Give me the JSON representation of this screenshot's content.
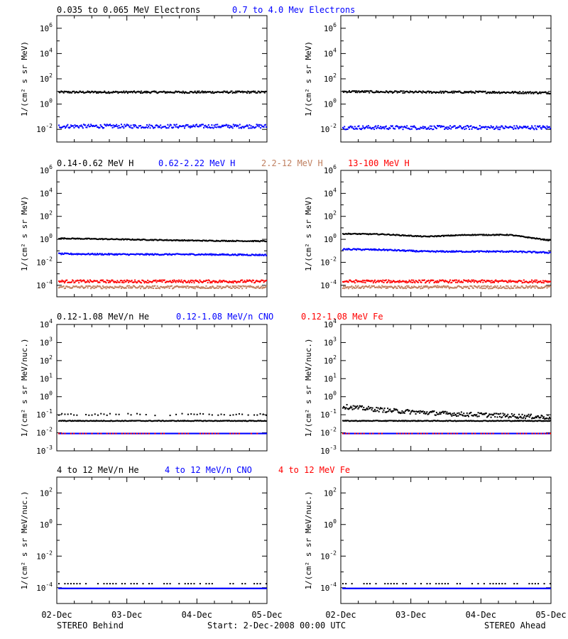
{
  "figure": {
    "footer": {
      "left": "STEREO Behind",
      "center": "Start:  2-Dec-2008 00:00 UTC",
      "right": "STEREO Ahead"
    },
    "x_tick_labels": [
      "02-Dec",
      "03-Dec",
      "04-Dec",
      "05-Dec"
    ]
  },
  "colors": {
    "black": "#000000",
    "blue": "#0000ff",
    "tan": "#c08060",
    "red": "#ff0000"
  },
  "rows": [
    {
      "legend": [
        {
          "text": "0.035 to 0.065 MeV Electrons",
          "color": "#000000"
        },
        {
          "text": "0.7 to 4.0 Mev Electrons",
          "color": "#0000ff"
        }
      ],
      "ylabel": "1/(cm² s sr MeV)",
      "yexp_range": [
        -3,
        7
      ],
      "yticks": [
        -2,
        0,
        2,
        4,
        6
      ],
      "tick_label_skip_top": false
    },
    {
      "legend": [
        {
          "text": "0.14-0.62 MeV H",
          "color": "#000000"
        },
        {
          "text": "0.62-2.22 MeV H",
          "color": "#0000ff"
        },
        {
          "text": "2.2-12 MeV H",
          "color": "#c08060"
        },
        {
          "text": "13-100 MeV H",
          "color": "#ff0000"
        }
      ],
      "ylabel": "1/(cm² s sr MeV)",
      "yexp_range": [
        -5,
        6
      ],
      "yticks": [
        -4,
        -2,
        0,
        2,
        4,
        6
      ]
    },
    {
      "legend": [
        {
          "text": "0.12-1.08 MeV/n He",
          "color": "#000000"
        },
        {
          "text": "0.12-1.08 MeV/n CNO",
          "color": "#0000ff"
        },
        {
          "text": "0.12-1.08 MeV Fe",
          "color": "#ff0000"
        }
      ],
      "ylabel": "1/(cm² s sr MeV/nuc.)",
      "yexp_range": [
        -3,
        4
      ],
      "yticks": [
        -3,
        -2,
        -1,
        0,
        1,
        2,
        3,
        4
      ]
    },
    {
      "legend": [
        {
          "text": "4 to 12 MeV/n He",
          "color": "#000000"
        },
        {
          "text": "4 to 12 MeV/n CNO",
          "color": "#0000ff"
        },
        {
          "text": "4 to 12 MeV Fe",
          "color": "#ff0000"
        }
      ],
      "ylabel": "1/(cm² s sr MeV/nuc.)",
      "yexp_range": [
        -5,
        3
      ],
      "yticks": [
        -4,
        -2,
        0,
        2
      ]
    }
  ],
  "chart_data": [
    {
      "type": "scatter",
      "row": 0,
      "spacecraft": "STEREO Behind",
      "yscale": "log",
      "xlim_days": [
        0,
        3
      ],
      "series": [
        {
          "name": "0.035 to 0.065 MeV Electrons",
          "color": "#000000",
          "level_log10": [
            1.0,
            1.0,
            1.0,
            1.0
          ],
          "scatter": 0.08
        },
        {
          "name": "0.7 to 4.0 Mev Electrons",
          "color": "#0000ff",
          "level_log10": [
            -1.7,
            -1.7,
            -1.7,
            -1.7
          ],
          "scatter": 0.15
        }
      ]
    },
    {
      "type": "scatter",
      "row": 0,
      "spacecraft": "STEREO Ahead",
      "yscale": "log",
      "xlim_days": [
        0,
        3
      ],
      "series": [
        {
          "name": "0.035 to 0.065 MeV Electrons",
          "color": "#000000",
          "level_log10": [
            1.05,
            1.0,
            1.0,
            0.95
          ],
          "scatter": 0.08
        },
        {
          "name": "0.7 to 4.0 Mev Electrons",
          "color": "#0000ff",
          "level_log10": [
            -1.8,
            -1.8,
            -1.8,
            -1.8
          ],
          "scatter": 0.15
        }
      ]
    },
    {
      "type": "scatter",
      "row": 1,
      "spacecraft": "STEREO Behind",
      "yscale": "log",
      "xlim_days": [
        0,
        3
      ],
      "series": [
        {
          "name": "0.14-0.62 MeV H",
          "color": "#000000",
          "level_log10": [
            0.15,
            0.05,
            -0.05,
            -0.1
          ],
          "scatter": 0.04
        },
        {
          "name": "0.62-2.22 MeV H",
          "color": "#0000ff",
          "level_log10": [
            -1.2,
            -1.25,
            -1.25,
            -1.3
          ],
          "scatter": 0.06
        },
        {
          "name": "13-100 MeV H",
          "color": "#ff0000",
          "level_log10": [
            -3.6,
            -3.6,
            -3.6,
            -3.6
          ],
          "scatter": 0.12
        },
        {
          "name": "2.2-12 MeV H",
          "color": "#c08060",
          "level_log10": [
            -4.1,
            -4.1,
            -4.1,
            -4.1
          ],
          "scatter": 0.12
        }
      ]
    },
    {
      "type": "scatter",
      "row": 1,
      "spacecraft": "STEREO Ahead",
      "yscale": "log",
      "xlim_days": [
        0,
        3
      ],
      "series": [
        {
          "name": "0.14-0.62 MeV H",
          "color": "#000000",
          "level_log10": [
            0.55,
            0.5,
            0.3,
            0.45,
            0.45,
            -0.05
          ],
          "scatter": 0.04
        },
        {
          "name": "0.62-2.22 MeV H",
          "color": "#0000ff",
          "level_log10": [
            -0.8,
            -0.85,
            -1.0,
            -1.0,
            -1.0,
            -1.1
          ],
          "scatter": 0.06
        },
        {
          "name": "13-100 MeV H",
          "color": "#ff0000",
          "level_log10": [
            -3.6,
            -3.6,
            -3.6,
            -3.6
          ],
          "scatter": 0.12
        },
        {
          "name": "2.2-12 MeV H",
          "color": "#c08060",
          "level_log10": [
            -4.1,
            -4.1,
            -4.1,
            -4.1
          ],
          "scatter": 0.12
        }
      ]
    },
    {
      "type": "scatter",
      "row": 2,
      "spacecraft": "STEREO Behind",
      "yscale": "log",
      "xlim_days": [
        0,
        3
      ],
      "series": [
        {
          "name": "0.12-1.08 MeV/n He",
          "color": "#000000",
          "level_log10": [
            -1.3,
            -1.3,
            -1.3,
            -1.3
          ],
          "scatter": 0.02
        },
        {
          "name": "0.12-1.08 MeV/n He (upper)",
          "color": "#000000",
          "level_log10": [
            -0.95,
            -0.95,
            -0.95,
            -0.95
          ],
          "scatter": 0.05,
          "sparse": true
        },
        {
          "name": "0.12-1.08 MeV/n CNO",
          "color": "#0000ff",
          "level_log10": [
            -2.0,
            -2.0,
            -2.0,
            -2.0
          ],
          "scatter": 0.0
        },
        {
          "name": "0.12-1.08 MeV Fe",
          "color": "#ff0000",
          "level_log10": [
            -2.0,
            -2.0,
            -2.0,
            -2.0
          ],
          "scatter": 0.0,
          "sparse": true
        }
      ]
    },
    {
      "type": "scatter",
      "row": 2,
      "spacecraft": "STEREO Ahead",
      "yscale": "log",
      "xlim_days": [
        0,
        3
      ],
      "series": [
        {
          "name": "0.12-1.08 MeV/n He",
          "color": "#000000",
          "level_log10": [
            -0.5,
            -0.75,
            -0.9,
            -1.0,
            -1.1
          ],
          "scatter": 0.12
        },
        {
          "name": "0.12-1.08 MeV/n He (lower)",
          "color": "#000000",
          "level_log10": [
            -1.3,
            -1.3,
            -1.3,
            -1.3
          ],
          "scatter": 0.02
        },
        {
          "name": "0.12-1.08 MeV/n CNO",
          "color": "#0000ff",
          "level_log10": [
            -2.0,
            -2.0,
            -2.0,
            -2.0
          ],
          "scatter": 0.0
        },
        {
          "name": "0.12-1.08 MeV Fe",
          "color": "#ff0000",
          "level_log10": [
            -2.0,
            -2.0,
            -2.0,
            -2.0
          ],
          "scatter": 0.0,
          "sparse": true
        }
      ]
    },
    {
      "type": "scatter",
      "row": 3,
      "spacecraft": "STEREO Behind",
      "yscale": "log",
      "xlim_days": [
        0,
        3
      ],
      "series": [
        {
          "name": "4 to 12 MeV/n CNO",
          "color": "#0000ff",
          "level_log10": [
            -4.0,
            -4.0,
            -4.0,
            -4.0
          ],
          "scatter": 0.0
        },
        {
          "name": "4 to 12 MeV/n He",
          "color": "#000000",
          "level_log10": [
            -3.7,
            -3.7,
            -3.7,
            -3.7
          ],
          "scatter": 0.0,
          "sparse": true
        }
      ]
    },
    {
      "type": "scatter",
      "row": 3,
      "spacecraft": "STEREO Ahead",
      "yscale": "log",
      "xlim_days": [
        0,
        3
      ],
      "series": [
        {
          "name": "4 to 12 MeV/n CNO",
          "color": "#0000ff",
          "level_log10": [
            -4.0,
            -4.0,
            -4.0,
            -4.0
          ],
          "scatter": 0.0
        },
        {
          "name": "4 to 12 MeV/n He",
          "color": "#000000",
          "level_log10": [
            -3.7,
            -3.7,
            -3.7,
            -3.7
          ],
          "scatter": 0.0,
          "sparse": true
        }
      ]
    }
  ]
}
